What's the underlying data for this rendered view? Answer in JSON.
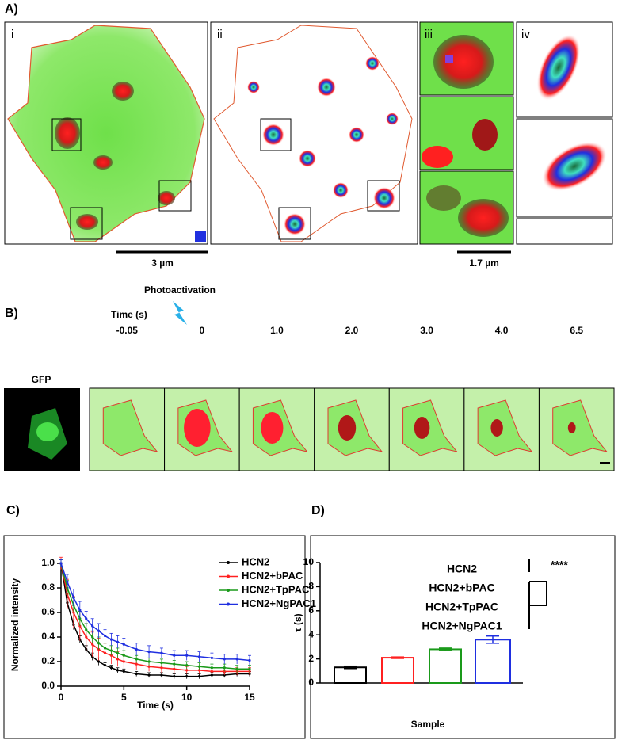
{
  "panels": {
    "a": {
      "label": "A)",
      "subpanels": [
        "i",
        "ii",
        "iii",
        "iv"
      ],
      "scale_bars": [
        "3 µm",
        "1.7 µm"
      ]
    },
    "b": {
      "label": "B)",
      "image_label": "GFP",
      "event": "Photoactivation",
      "time_label": "Time (s)",
      "times": [
        "-0.05",
        "0",
        "1.0",
        "2.0",
        "3.0",
        "4.0",
        "6.5"
      ]
    }
  },
  "chart_data": [
    {
      "type": "line",
      "panel_label": "C)",
      "xlabel": "Time (s)",
      "ylabel": "Normalized intensity",
      "xlim": [
        0,
        15
      ],
      "xticks": [
        0,
        5,
        10,
        15
      ],
      "ylim": [
        0,
        1
      ],
      "yticks": [
        {
          "value": 0,
          "label": "0.0"
        },
        0.2,
        0.4,
        0.6,
        0.8,
        {
          "value": 1,
          "label": "1.0"
        }
      ],
      "x": [
        0,
        0.5,
        1,
        1.5,
        2,
        2.5,
        3,
        3.5,
        4,
        4.5,
        5,
        6,
        7,
        8,
        9,
        10,
        11,
        12,
        13,
        14,
        15
      ],
      "series": [
        {
          "name": "HCN2",
          "color": "#000000",
          "values": [
            1.0,
            0.68,
            0.5,
            0.38,
            0.3,
            0.24,
            0.2,
            0.17,
            0.15,
            0.13,
            0.12,
            0.1,
            0.09,
            0.09,
            0.08,
            0.08,
            0.08,
            0.09,
            0.09,
            0.1,
            0.1
          ],
          "errors": [
            0.03,
            0.04,
            0.04,
            0.03,
            0.03,
            0.03,
            0.03,
            0.02,
            0.02,
            0.02,
            0.02,
            0.02,
            0.02,
            0.02,
            0.02,
            0.02,
            0.02,
            0.02,
            0.02,
            0.02,
            0.02
          ]
        },
        {
          "name": "HCN2+bPAC",
          "color": "#ff2020",
          "values": [
            1.0,
            0.75,
            0.6,
            0.49,
            0.4,
            0.34,
            0.3,
            0.27,
            0.25,
            0.22,
            0.2,
            0.18,
            0.16,
            0.15,
            0.14,
            0.13,
            0.13,
            0.12,
            0.12,
            0.12,
            0.12
          ],
          "errors": [
            0.05,
            0.12,
            0.13,
            0.12,
            0.11,
            0.1,
            0.09,
            0.08,
            0.07,
            0.06,
            0.05,
            0.05,
            0.04,
            0.04,
            0.04,
            0.03,
            0.03,
            0.03,
            0.03,
            0.03,
            0.03
          ]
        },
        {
          "name": "HCN2+TpPAC",
          "color": "#1a9a1a",
          "values": [
            1.0,
            0.8,
            0.66,
            0.55,
            0.46,
            0.4,
            0.35,
            0.31,
            0.29,
            0.27,
            0.25,
            0.22,
            0.2,
            0.19,
            0.18,
            0.17,
            0.16,
            0.15,
            0.15,
            0.14,
            0.14
          ],
          "errors": [
            0.03,
            0.06,
            0.06,
            0.06,
            0.05,
            0.05,
            0.05,
            0.04,
            0.04,
            0.04,
            0.04,
            0.03,
            0.03,
            0.03,
            0.03,
            0.03,
            0.03,
            0.03,
            0.03,
            0.03,
            0.03
          ]
        },
        {
          "name": "HCN2+NgPAC1",
          "color": "#1f2fe0",
          "values": [
            1.0,
            0.85,
            0.72,
            0.62,
            0.55,
            0.49,
            0.45,
            0.41,
            0.38,
            0.36,
            0.34,
            0.3,
            0.28,
            0.27,
            0.25,
            0.25,
            0.24,
            0.23,
            0.22,
            0.22,
            0.21
          ],
          "errors": [
            0.03,
            0.06,
            0.07,
            0.07,
            0.06,
            0.06,
            0.06,
            0.05,
            0.05,
            0.05,
            0.05,
            0.05,
            0.05,
            0.04,
            0.04,
            0.04,
            0.04,
            0.04,
            0.04,
            0.04,
            0.04
          ]
        }
      ],
      "legend": "upper right"
    },
    {
      "type": "bar",
      "panel_label": "D)",
      "xlabel": "Sample",
      "ylabel": "τ (s)",
      "ylim": [
        0,
        10
      ],
      "yticks": [
        0,
        2,
        4,
        6,
        8,
        10
      ],
      "categories": [
        "HCN2",
        "HCN2+bPAC",
        "HCN2+TpPAC",
        "HCN2+NgPAC1"
      ],
      "colors": [
        "#000000",
        "#ff2020",
        "#1a9a1a",
        "#1f2fe0"
      ],
      "values": [
        1.3,
        2.1,
        2.8,
        3.6
      ],
      "errors": [
        0.1,
        0.06,
        0.1,
        0.3
      ],
      "annotation": "****"
    }
  ]
}
